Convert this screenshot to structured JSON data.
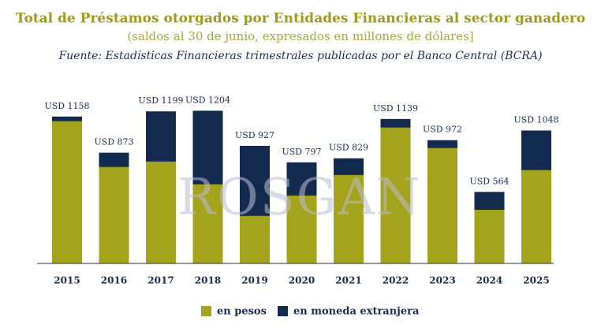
{
  "chart_data": {
    "type": "stacked_bar",
    "title": "Total de Préstamos otorgados por Entidades Financieras al sector ganadero",
    "subtitle": "(saldos al 30 de junio, expresados en millones de dólares]",
    "source": "Fuente: Estadísticas Financieras trimestrales publicadas por el Banco Central (BCRA)",
    "watermark": "ROSGAN",
    "categories": [
      "2015",
      "2016",
      "2017",
      "2018",
      "2019",
      "2020",
      "2021",
      "2022",
      "2023",
      "2024",
      "2025"
    ],
    "series": [
      {
        "name": "en pesos",
        "color": "#a3a31c",
        "values": [
          1121,
          760,
          803,
          623,
          374,
          535,
          697,
          1071,
          909,
          423,
          735
        ]
      },
      {
        "name": "en moneda extranjera",
        "color": "#132a4f",
        "values": [
          37,
          113,
          396,
          581,
          553,
          262,
          132,
          68,
          63,
          141,
          313
        ]
      }
    ],
    "total_labels": [
      "USD 1158",
      "USD 873",
      "USD 1199",
      "USD 1204",
      "USD 927",
      "USD 797",
      "USD 829",
      "USD 1139",
      "USD 972",
      "USD 564",
      "USD 1048"
    ],
    "ylim": [
      0,
      1250
    ]
  }
}
